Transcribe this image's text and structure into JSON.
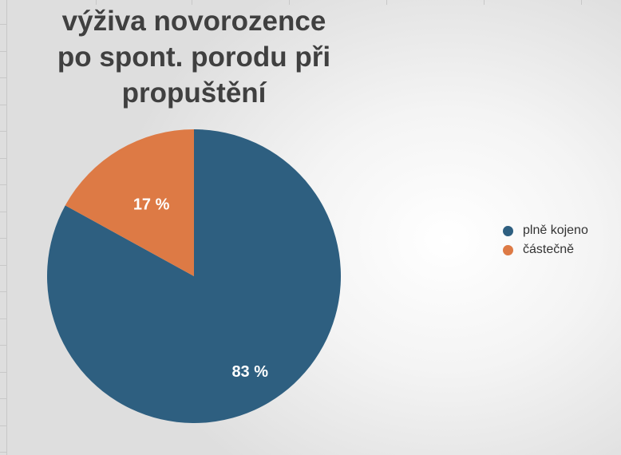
{
  "chart_data": {
    "type": "pie",
    "title": "výživa novorozence po spont. porodu při propuštění",
    "title_lines": [
      "výživa novorozence",
      "po spont. porodu při",
      "propuštění"
    ],
    "series": [
      {
        "name": "plně kojeno",
        "value": 83,
        "label": "83 %",
        "color": "#2e5f80"
      },
      {
        "name": "částečně",
        "value": 17,
        "label": "17 %",
        "color": "#dd7a45"
      }
    ],
    "legend_position": "right"
  }
}
